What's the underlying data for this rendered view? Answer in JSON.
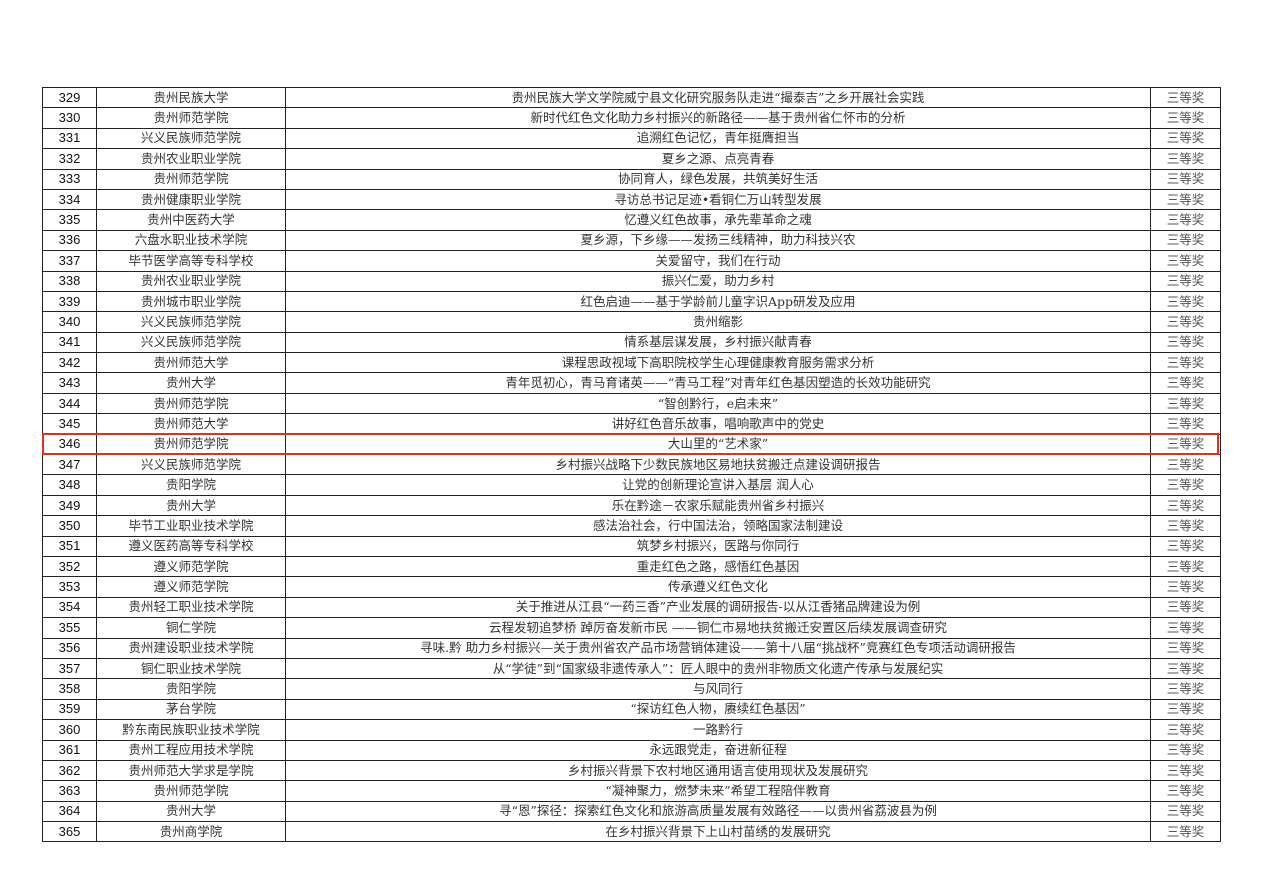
{
  "highlight_color": "#e0301e",
  "highlighted_row": "346",
  "rows": [
    {
      "no": "329",
      "school": "贵州民族大学",
      "title": "贵州民族大学文学院威宁县文化研究服务队走进“撮泰吉”之乡开展社会实践",
      "award": "三等奖"
    },
    {
      "no": "330",
      "school": "贵州师范学院",
      "title": "新时代红色文化助力乡村振兴的新路径——基于贵州省仁怀市的分析",
      "award": "三等奖"
    },
    {
      "no": "331",
      "school": "兴义民族师范学院",
      "title": "追溯红色记忆，青年挺膺担当",
      "award": "三等奖"
    },
    {
      "no": "332",
      "school": "贵州农业职业学院",
      "title": "夏乡之源、点亮青春",
      "award": "三等奖"
    },
    {
      "no": "333",
      "school": "贵州师范学院",
      "title": "协同育人，绿色发展，共筑美好生活",
      "award": "三等奖"
    },
    {
      "no": "334",
      "school": "贵州健康职业学院",
      "title": "寻访总书记足迹•看铜仁万山转型发展",
      "award": "三等奖"
    },
    {
      "no": "335",
      "school": "贵州中医药大学",
      "title": "忆遵义红色故事，承先辈革命之魂",
      "award": "三等奖"
    },
    {
      "no": "336",
      "school": "六盘水职业技术学院",
      "title": "夏乡源，下乡缘——发扬三线精神，助力科技兴农",
      "award": "三等奖"
    },
    {
      "no": "337",
      "school": "毕节医学高等专科学校",
      "title": "关爱留守，我们在行动",
      "award": "三等奖"
    },
    {
      "no": "338",
      "school": "贵州农业职业学院",
      "title": "振兴仁爱，助力乡村",
      "award": "三等奖"
    },
    {
      "no": "339",
      "school": "贵州城市职业学院",
      "title": "红色启迪——基于学龄前儿童字识App研发及应用",
      "award": "三等奖"
    },
    {
      "no": "340",
      "school": "兴义民族师范学院",
      "title": "贵州缩影",
      "award": "三等奖"
    },
    {
      "no": "341",
      "school": "兴义民族师范学院",
      "title": "情系基层谋发展，乡村振兴献青春",
      "award": "三等奖"
    },
    {
      "no": "342",
      "school": "贵州师范大学",
      "title": "课程思政视域下高职院校学生心理健康教育服务需求分析",
      "award": "三等奖"
    },
    {
      "no": "343",
      "school": "贵州大学",
      "title": "青年觅初心，青马育诸英——“青马工程”对青年红色基因塑造的长效功能研究",
      "award": "三等奖"
    },
    {
      "no": "344",
      "school": "贵州师范学院",
      "title": "“智创黔行，e启未来”",
      "award": "三等奖"
    },
    {
      "no": "345",
      "school": "贵州师范大学",
      "title": "讲好红色音乐故事，唱响歌声中的党史",
      "award": "三等奖"
    },
    {
      "no": "346",
      "school": "贵州师范学院",
      "title": "大山里的“艺术家”",
      "award": "三等奖"
    },
    {
      "no": "347",
      "school": "兴义民族师范学院",
      "title": "乡村振兴战略下少数民族地区易地扶贫搬迁点建设调研报告",
      "award": "三等奖"
    },
    {
      "no": "348",
      "school": "贵阳学院",
      "title": "让党的创新理论宣讲入基层 润人心",
      "award": "三等奖"
    },
    {
      "no": "349",
      "school": "贵州大学",
      "title": "乐在黔途－农家乐赋能贵州省乡村振兴",
      "award": "三等奖"
    },
    {
      "no": "350",
      "school": "毕节工业职业技术学院",
      "title": "感法治社会，行中国法治，领略国家法制建设",
      "award": "三等奖"
    },
    {
      "no": "351",
      "school": "遵义医药高等专科学校",
      "title": "筑梦乡村振兴，医路与你同行",
      "award": "三等奖"
    },
    {
      "no": "352",
      "school": "遵义师范学院",
      "title": "重走红色之路，感悟红色基因",
      "award": "三等奖"
    },
    {
      "no": "353",
      "school": "遵义师范学院",
      "title": "传承遵义红色文化",
      "award": "三等奖"
    },
    {
      "no": "354",
      "school": "贵州轻工职业技术学院",
      "title": "关于推进从江县“一药三香”产业发展的调研报告-以从江香猪品牌建设为例",
      "award": "三等奖"
    },
    {
      "no": "355",
      "school": "铜仁学院",
      "title": "云程发轫追梦桥 踔厉奋发新市民 ——铜仁市易地扶贫搬迁安置区后续发展调查研究",
      "award": "三等奖"
    },
    {
      "no": "356",
      "school": "贵州建设职业技术学院",
      "title": "寻味.黔 助力乡村振兴—关于贵州省农产品市场营销体建设——第十八届“挑战杯”竞赛红色专项活动调研报告",
      "award": "三等奖"
    },
    {
      "no": "357",
      "school": "铜仁职业技术学院",
      "title": "从“学徒”到“国家级非遗传承人”：匠人眼中的贵州非物质文化遗产传承与发展纪实",
      "award": "三等奖"
    },
    {
      "no": "358",
      "school": "贵阳学院",
      "title": "与风同行",
      "award": "三等奖"
    },
    {
      "no": "359",
      "school": "茅台学院",
      "title": "“探访红色人物，赓续红色基因”",
      "award": "三等奖"
    },
    {
      "no": "360",
      "school": "黔东南民族职业技术学院",
      "title": "一路黔行",
      "award": "三等奖"
    },
    {
      "no": "361",
      "school": "贵州工程应用技术学院",
      "title": "永远跟党走，奋进新征程",
      "award": "三等奖"
    },
    {
      "no": "362",
      "school": "贵州师范大学求是学院",
      "title": "乡村振兴背景下农村地区通用语言使用现状及发展研究",
      "award": "三等奖"
    },
    {
      "no": "363",
      "school": "贵州师范学院",
      "title": "“凝神聚力，燃梦未来”希望工程陪伴教育",
      "award": "三等奖"
    },
    {
      "no": "364",
      "school": "贵州大学",
      "title": "寻“恩”探径：探索红色文化和旅游高质量发展有效路径——以贵州省荔波县为例",
      "award": "三等奖"
    },
    {
      "no": "365",
      "school": "贵州商学院",
      "title": "在乡村振兴背景下上山村苗绣的发展研究",
      "award": "三等奖"
    }
  ]
}
